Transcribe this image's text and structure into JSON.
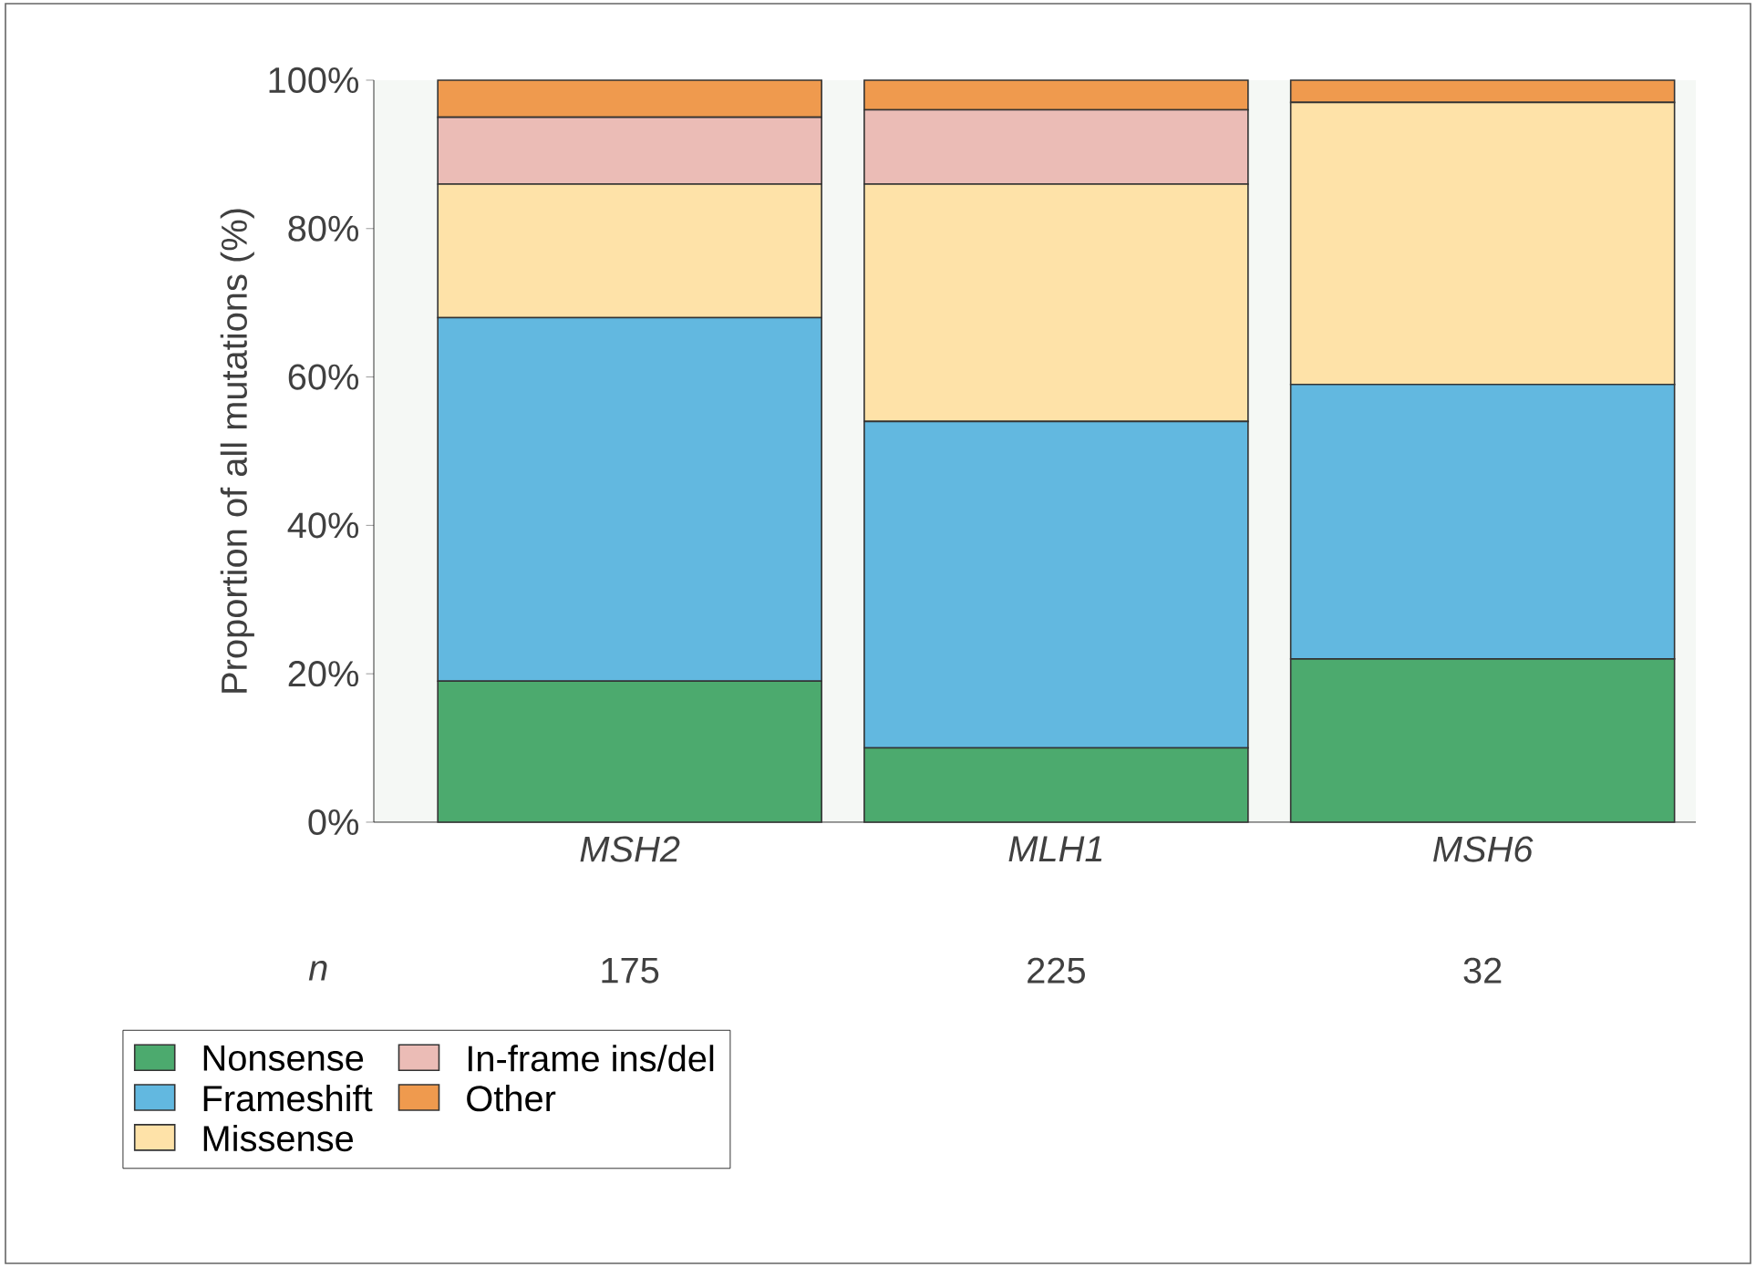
{
  "chart_data": {
    "type": "bar",
    "stacked": true,
    "ylabel": "Proportion of all mutations (%)",
    "categories": [
      "MSH2",
      "MLH1",
      "MSH6"
    ],
    "series": [
      {
        "name": "Nonsense",
        "color": "#4caa6e",
        "values": [
          19,
          10,
          22
        ]
      },
      {
        "name": "Frameshift",
        "color": "#62b8e0",
        "values": [
          49,
          44,
          37
        ]
      },
      {
        "name": "Missense",
        "color": "#fee2a8",
        "values": [
          18,
          32,
          38
        ]
      },
      {
        "name": "In-frame ins/del",
        "color": "#ebbcb6",
        "values": [
          9,
          10,
          0
        ]
      },
      {
        "name": "Other",
        "color": "#ef9a4e",
        "values": [
          5,
          4,
          3
        ]
      }
    ],
    "ylim": [
      0,
      100
    ],
    "yticks": [
      {
        "value": 0,
        "label": "0%"
      },
      {
        "value": 20,
        "label": "20%"
      },
      {
        "value": 40,
        "label": "40%"
      },
      {
        "value": 60,
        "label": "60%"
      },
      {
        "value": 80,
        "label": "80%"
      },
      {
        "value": 100,
        "label": "100%"
      }
    ],
    "annotations": [
      "n",
      "175",
      "225",
      "32"
    ],
    "legend": "bottom left",
    "grid": false
  }
}
